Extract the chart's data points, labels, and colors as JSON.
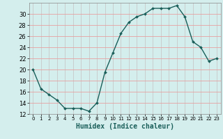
{
  "x": [
    0,
    1,
    2,
    3,
    4,
    5,
    6,
    7,
    8,
    9,
    10,
    11,
    12,
    13,
    14,
    15,
    16,
    17,
    18,
    19,
    20,
    21,
    22,
    23
  ],
  "y": [
    20,
    16.5,
    15.5,
    14.5,
    13,
    13,
    13,
    12.5,
    14,
    19.5,
    23,
    26.5,
    28.5,
    29.5,
    30,
    31,
    31,
    31,
    31.5,
    29.5,
    25,
    24,
    21.5,
    22
  ],
  "line_color": "#1a5f5a",
  "marker_color": "#1a5f5a",
  "bg_color": "#d4eeed",
  "grid_color": "#c0c0c0",
  "grid_color2": "#f0a0a0",
  "xlabel": "Humidex (Indice chaleur)",
  "ylim": [
    12,
    32
  ],
  "xlim": [
    -0.5,
    23.5
  ],
  "yticks": [
    12,
    14,
    16,
    18,
    20,
    22,
    24,
    26,
    28,
    30
  ],
  "xticks": [
    0,
    1,
    2,
    3,
    4,
    5,
    6,
    7,
    8,
    9,
    10,
    11,
    12,
    13,
    14,
    15,
    16,
    17,
    18,
    19,
    20,
    21,
    22,
    23
  ]
}
